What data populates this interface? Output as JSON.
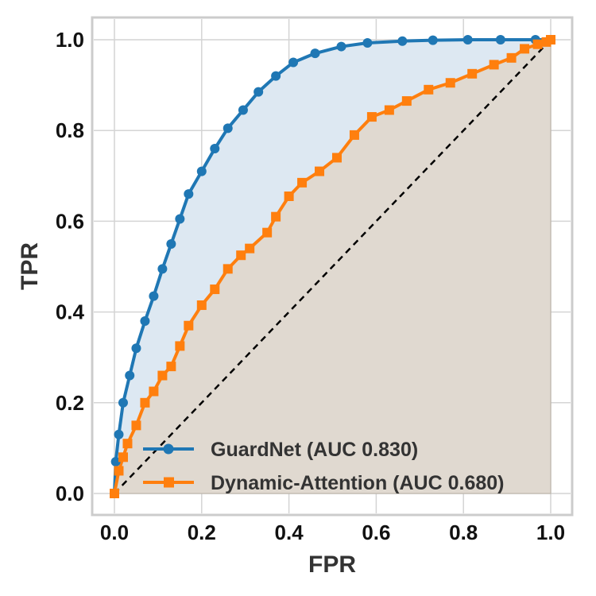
{
  "chart_data": {
    "type": "line",
    "title": "",
    "xlabel": "FPR",
    "ylabel": "TPR",
    "xlim": [
      -0.05,
      1.05
    ],
    "ylim": [
      -0.05,
      1.05
    ],
    "x_ticks": [
      "0.0",
      "0.2",
      "0.4",
      "0.6",
      "0.8",
      "1.0"
    ],
    "y_ticks": [
      "0.0",
      "0.2",
      "0.4",
      "0.6",
      "0.8",
      "1.0"
    ],
    "grid": true,
    "legend_position": "bottom-right",
    "diagonal_reference": true,
    "series": [
      {
        "name": "GuardNet (AUC 0.830)",
        "color": "#1f77b4",
        "marker": "circle",
        "fill": true,
        "x": [
          0.0,
          0.003,
          0.01,
          0.02,
          0.035,
          0.05,
          0.07,
          0.09,
          0.11,
          0.13,
          0.15,
          0.17,
          0.2,
          0.23,
          0.26,
          0.295,
          0.33,
          0.37,
          0.41,
          0.46,
          0.52,
          0.58,
          0.66,
          0.73,
          0.81,
          0.885,
          0.965,
          1.0
        ],
        "y": [
          0.0,
          0.07,
          0.13,
          0.2,
          0.26,
          0.32,
          0.38,
          0.435,
          0.495,
          0.55,
          0.605,
          0.66,
          0.71,
          0.76,
          0.805,
          0.845,
          0.885,
          0.92,
          0.95,
          0.97,
          0.985,
          0.993,
          0.997,
          0.999,
          1.0,
          1.0,
          1.0,
          1.0
        ]
      },
      {
        "name": "Dynamic-Attention (AUC 0.680)",
        "color": "#ff7f0e",
        "marker": "square",
        "fill": true,
        "x": [
          0.0,
          0.01,
          0.02,
          0.03,
          0.05,
          0.07,
          0.09,
          0.11,
          0.13,
          0.15,
          0.17,
          0.2,
          0.23,
          0.26,
          0.29,
          0.31,
          0.35,
          0.37,
          0.4,
          0.43,
          0.47,
          0.51,
          0.55,
          0.59,
          0.63,
          0.67,
          0.72,
          0.77,
          0.82,
          0.87,
          0.91,
          0.94,
          0.97,
          0.99,
          1.0
        ],
        "y": [
          0.0,
          0.05,
          0.08,
          0.11,
          0.15,
          0.2,
          0.225,
          0.26,
          0.28,
          0.325,
          0.37,
          0.415,
          0.45,
          0.495,
          0.525,
          0.54,
          0.575,
          0.61,
          0.655,
          0.685,
          0.71,
          0.74,
          0.79,
          0.83,
          0.845,
          0.865,
          0.89,
          0.905,
          0.925,
          0.945,
          0.96,
          0.98,
          0.99,
          0.995,
          1.0
        ]
      }
    ]
  }
}
